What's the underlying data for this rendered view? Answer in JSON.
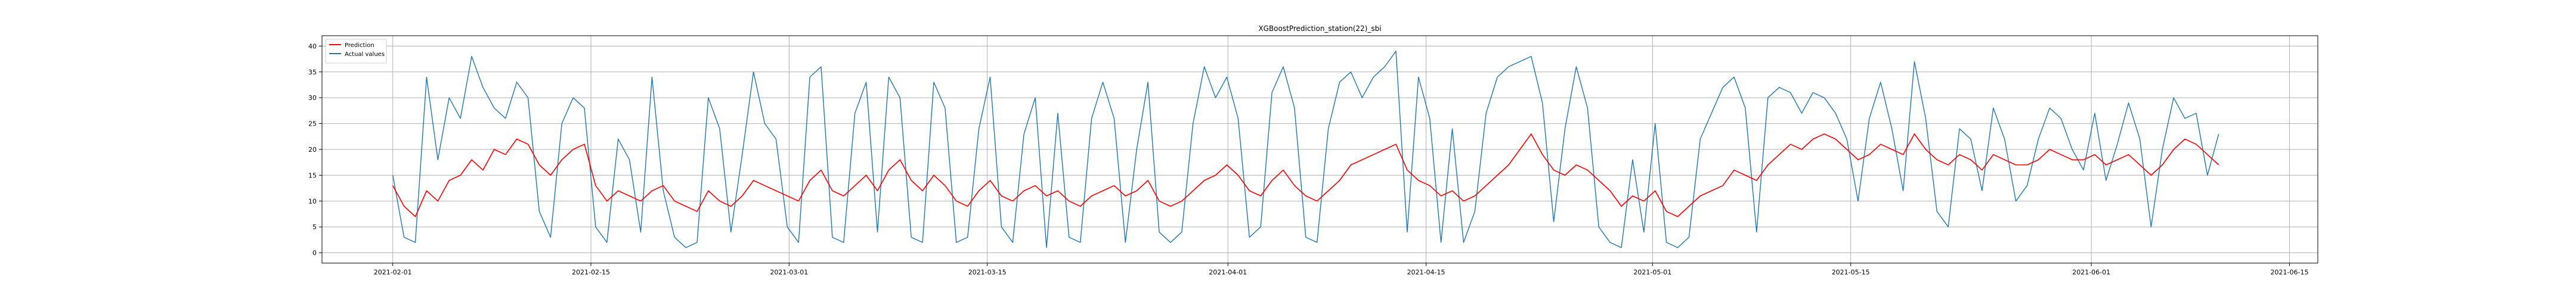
{
  "chart_data": {
    "type": "line",
    "title": "XGBoostPrediction_station(22)_sbi",
    "xlabel": "",
    "ylabel": "",
    "ylim": [
      -2,
      42
    ],
    "xlim": [
      "2021-01-27",
      "2021-06-17"
    ],
    "yticks": [
      0,
      5,
      10,
      15,
      20,
      25,
      30,
      35,
      40
    ],
    "xticks": [
      "2021-02-01",
      "2021-02-15",
      "2021-03-01",
      "2021-03-15",
      "2021-04-01",
      "2021-04-15",
      "2021-05-01",
      "2021-05-15",
      "2021-06-01",
      "2021-06-15"
    ],
    "x_start": "2021-02-01",
    "x_end": "2021-06-10",
    "grid": true,
    "legend_position": "top-left",
    "series": [
      {
        "name": "Prediction",
        "color": "#ff0000",
        "values": [
          13,
          9,
          7,
          12,
          10,
          14,
          15,
          18,
          16,
          20,
          19,
          22,
          21,
          17,
          15,
          18,
          20,
          21,
          13,
          10,
          12,
          11,
          10,
          12,
          13,
          10,
          9,
          8,
          12,
          10,
          9,
          11,
          14,
          13,
          12,
          11,
          10,
          14,
          16,
          12,
          11,
          13,
          15,
          12,
          16,
          18,
          14,
          12,
          15,
          13,
          10,
          9,
          12,
          14,
          11,
          10,
          12,
          13,
          11,
          12,
          10,
          9,
          11,
          12,
          13,
          11,
          12,
          14,
          10,
          9,
          10,
          12,
          14,
          15,
          17,
          15,
          12,
          11,
          14,
          16,
          13,
          11,
          10,
          12,
          14,
          17,
          18,
          19,
          20,
          21,
          16,
          14,
          13,
          11,
          12,
          10,
          11,
          13,
          15,
          17,
          20,
          23,
          19,
          16,
          15,
          17,
          16,
          14,
          12,
          9,
          11,
          10,
          12,
          8,
          7,
          9,
          11,
          12,
          13,
          16,
          15,
          14,
          17,
          19,
          21,
          20,
          22,
          23,
          22,
          20,
          18,
          19,
          21,
          20,
          19,
          23,
          20,
          18,
          17,
          19,
          18,
          16,
          19,
          18,
          17,
          17,
          18,
          20,
          19,
          18,
          18,
          19,
          17,
          18,
          19,
          17,
          15,
          17,
          20,
          22,
          21,
          19,
          17
        ]
      },
      {
        "name": "Actual values",
        "color": "#1f77b4",
        "values": [
          15,
          3,
          2,
          34,
          18,
          30,
          26,
          38,
          32,
          28,
          26,
          33,
          30,
          8,
          3,
          25,
          30,
          28,
          5,
          2,
          22,
          18,
          4,
          34,
          12,
          3,
          1,
          2,
          30,
          24,
          4,
          19,
          35,
          25,
          22,
          5,
          2,
          34,
          36,
          3,
          2,
          27,
          33,
          4,
          34,
          30,
          3,
          2,
          33,
          28,
          2,
          3,
          24,
          34,
          5,
          2,
          23,
          30,
          1,
          27,
          3,
          2,
          26,
          33,
          26,
          2,
          20,
          33,
          4,
          2,
          4,
          25,
          36,
          30,
          34,
          26,
          3,
          5,
          31,
          36,
          28,
          3,
          2,
          24,
          33,
          35,
          30,
          34,
          36,
          39,
          4,
          34,
          26,
          2,
          24,
          2,
          8,
          27,
          34,
          36,
          37,
          38,
          29,
          6,
          24,
          36,
          28,
          5,
          2,
          1,
          18,
          4,
          25,
          2,
          1,
          3,
          22,
          27,
          32,
          34,
          28,
          4,
          30,
          32,
          31,
          27,
          31,
          30,
          27,
          22,
          10,
          26,
          33,
          24,
          12,
          37,
          26,
          8,
          5,
          24,
          22,
          12,
          28,
          22,
          10,
          13,
          22,
          28,
          26,
          20,
          16,
          27,
          14,
          21,
          29,
          22,
          5,
          20,
          30,
          26,
          27,
          15,
          23
        ]
      }
    ]
  }
}
